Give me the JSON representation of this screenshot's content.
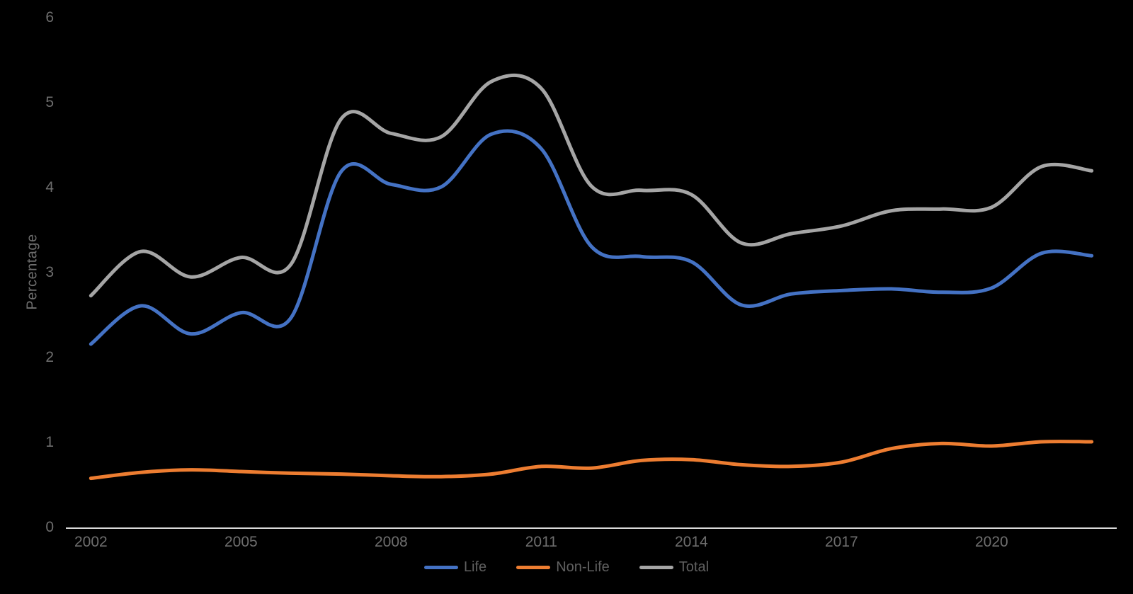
{
  "chart_data": {
    "type": "line",
    "smooth": true,
    "title": "",
    "xlabel": "",
    "ylabel": "Percentage",
    "x": [
      2002,
      2003,
      2004,
      2005,
      2006,
      2007,
      2008,
      2009,
      2010,
      2011,
      2012,
      2013,
      2014,
      2015,
      2016,
      2017,
      2018,
      2019,
      2020,
      2021,
      2022
    ],
    "series": [
      {
        "name": "Life",
        "color": "#4472C4",
        "values": [
          2.15,
          2.6,
          2.27,
          2.52,
          2.46,
          4.18,
          4.03,
          4.0,
          4.62,
          4.45,
          3.3,
          3.18,
          3.12,
          2.61,
          2.74,
          2.78,
          2.8,
          2.76,
          2.81,
          3.22,
          3.19
        ]
      },
      {
        "name": "Non-Life",
        "color": "#ED7D31",
        "values": [
          0.57,
          0.64,
          0.67,
          0.65,
          0.63,
          0.62,
          0.6,
          0.59,
          0.62,
          0.71,
          0.69,
          0.78,
          0.79,
          0.73,
          0.71,
          0.76,
          0.92,
          0.98,
          0.95,
          1.0,
          1.0
        ]
      },
      {
        "name": "Total",
        "color": "#A5A5A5",
        "values": [
          2.72,
          3.24,
          2.94,
          3.17,
          3.09,
          4.8,
          4.63,
          4.59,
          5.24,
          5.16,
          4.01,
          3.96,
          3.91,
          3.34,
          3.45,
          3.54,
          3.72,
          3.74,
          3.76,
          4.24,
          4.19
        ]
      }
    ],
    "ylim": [
      0,
      6
    ],
    "yticks": [
      0,
      1,
      2,
      3,
      4,
      5,
      6
    ],
    "xticks": [
      2002,
      2005,
      2008,
      2011,
      2014,
      2017,
      2020
    ],
    "grid": false,
    "legend_position": "bottom"
  },
  "colors": {
    "background": "#000000",
    "axis_line": "#D9D9D9",
    "tick_label": "#6e6e6e",
    "axis_title": "#6e6e6e",
    "legend_label": "#606060"
  }
}
